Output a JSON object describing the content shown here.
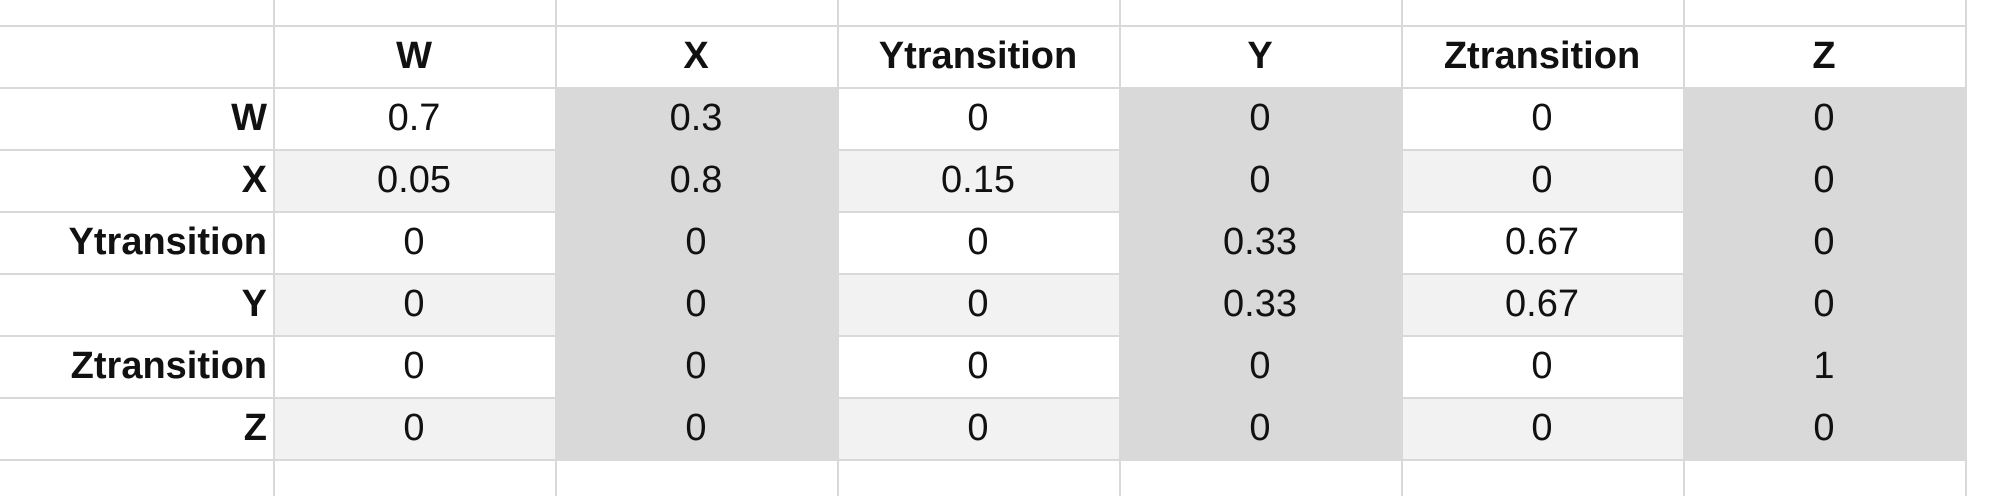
{
  "table": {
    "columns": [
      "W",
      "X",
      "Ytransition",
      "Y",
      "Ztransition",
      "Z"
    ],
    "rows": [
      {
        "label": "W",
        "values": [
          "0.7",
          "0.3",
          "0",
          "0",
          "0",
          "0"
        ]
      },
      {
        "label": "X",
        "values": [
          "0.05",
          "0.8",
          "0.15",
          "0",
          "0",
          "0"
        ]
      },
      {
        "label": "Ytransition",
        "values": [
          "0",
          "0",
          "0",
          "0.33",
          "0.67",
          "0"
        ]
      },
      {
        "label": "Y",
        "values": [
          "0",
          "0",
          "0",
          "0.33",
          "0.67",
          "0"
        ]
      },
      {
        "label": "Ztransition",
        "values": [
          "0",
          "0",
          "0",
          "0",
          "0",
          "1"
        ]
      },
      {
        "label": "Z",
        "values": [
          "0",
          "0",
          "0",
          "0",
          "0",
          "0"
        ]
      }
    ],
    "colors": {
      "shade_light": "#f2f2f2",
      "shade_dark": "#d9d9d9",
      "grid": "#d9d9d9"
    }
  }
}
